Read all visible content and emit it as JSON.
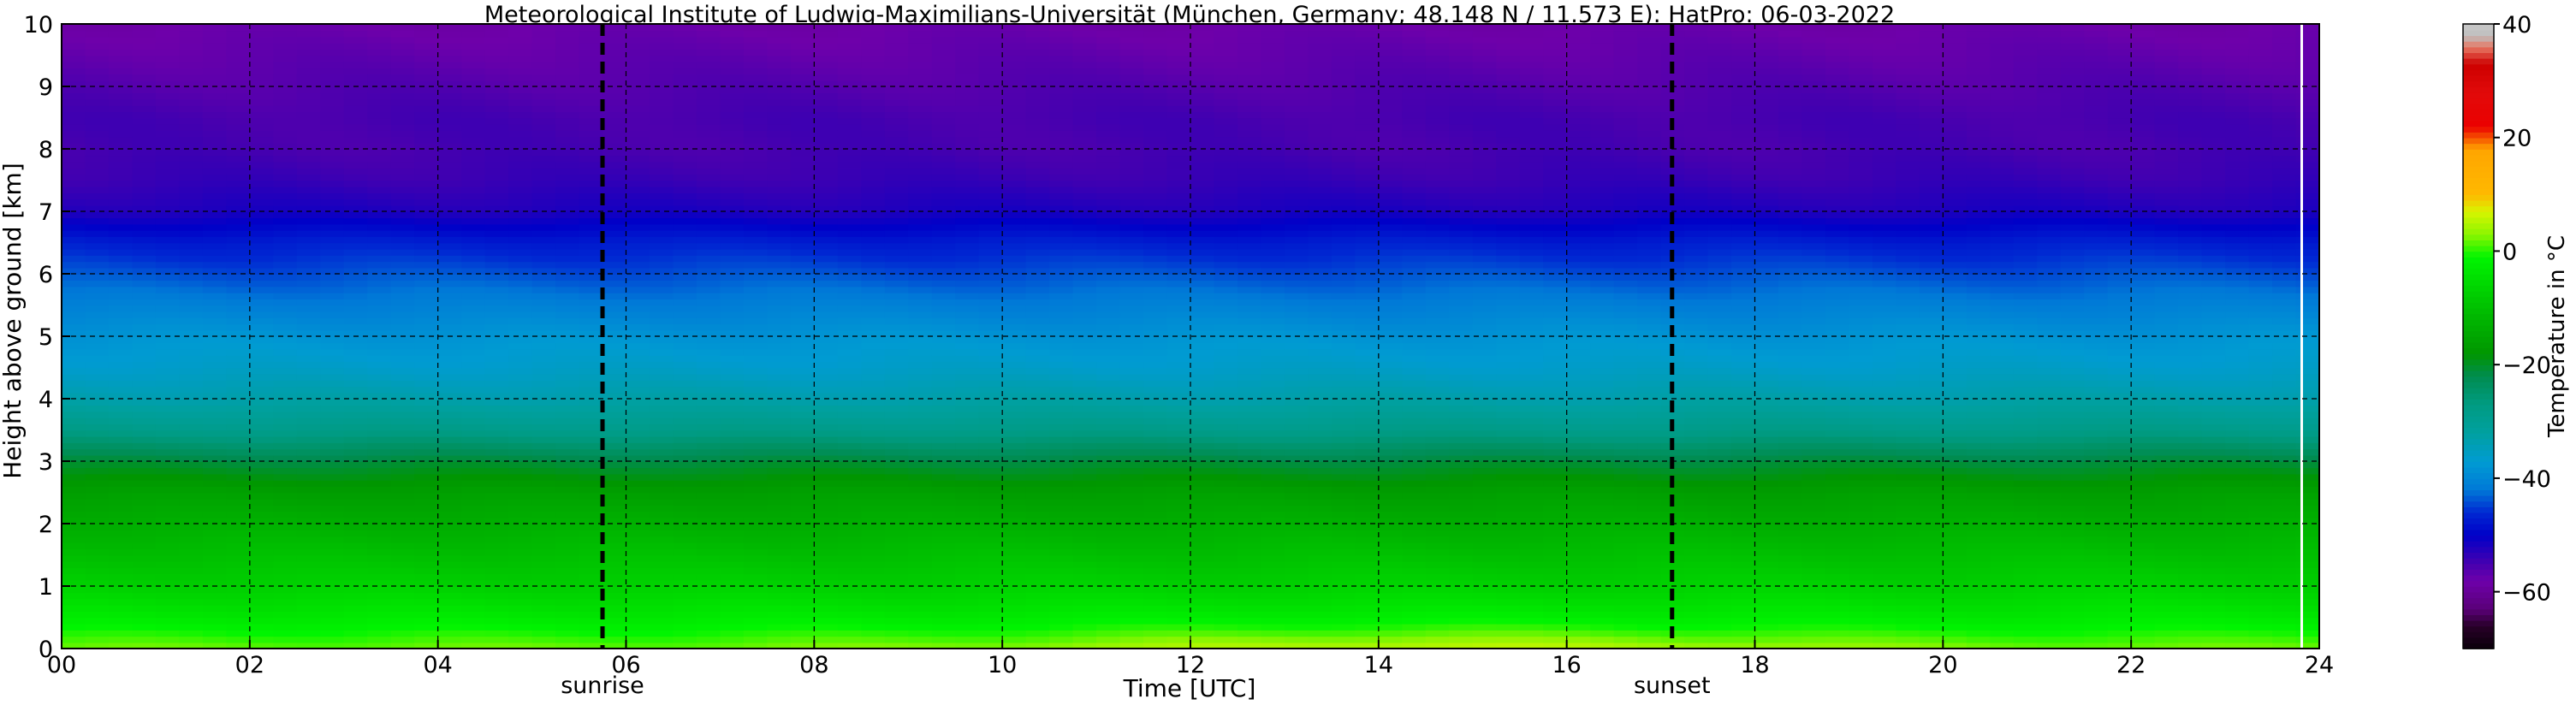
{
  "chart_data": {
    "type": "heatmap",
    "title": "Meteorological Institute of Ludwig-Maximilians-Universität (München, Germany; 48.148 N / 11.573 E):    HatPro: 06-03-2022",
    "xlabel": "Time [UTC]",
    "ylabel": "Height above ground [km]",
    "xlim": [
      0,
      24
    ],
    "ylim": [
      0,
      10
    ],
    "x_ticks": [
      "00",
      "02",
      "04",
      "06",
      "08",
      "10",
      "12",
      "14",
      "16",
      "18",
      "20",
      "22",
      "24"
    ],
    "y_ticks": [
      "0",
      "1",
      "2",
      "3",
      "4",
      "5",
      "6",
      "7",
      "8",
      "9",
      "10"
    ],
    "grid": true,
    "events": [
      {
        "label": "sunrise",
        "time": 5.75
      },
      {
        "label": "sunset",
        "time": 17.12
      }
    ],
    "data_end_time": 23.8,
    "colorbar": {
      "label": "Temperature in $^\\circ$C",
      "ticks": [
        "−60",
        "−40",
        "−20",
        "0",
        "20",
        "40"
      ],
      "range": [
        -70,
        40
      ]
    },
    "temperature_profile": {
      "heights_km": [
        0,
        0.5,
        1,
        1.5,
        2,
        2.5,
        3,
        3.5,
        4,
        4.5,
        5,
        5.5,
        6,
        6.5,
        7,
        7.5,
        8,
        8.5,
        9,
        9.5,
        10
      ],
      "values_c": [
        2,
        -3,
        -7,
        -10,
        -13,
        -16,
        -21,
        -28,
        -33,
        -36,
        -38,
        -41,
        -44,
        -47,
        -52,
        -54,
        -55,
        -55,
        -56,
        -57,
        -58
      ]
    },
    "surface_warming": {
      "peak_time": 14.5,
      "peak_value_c": 6
    }
  }
}
